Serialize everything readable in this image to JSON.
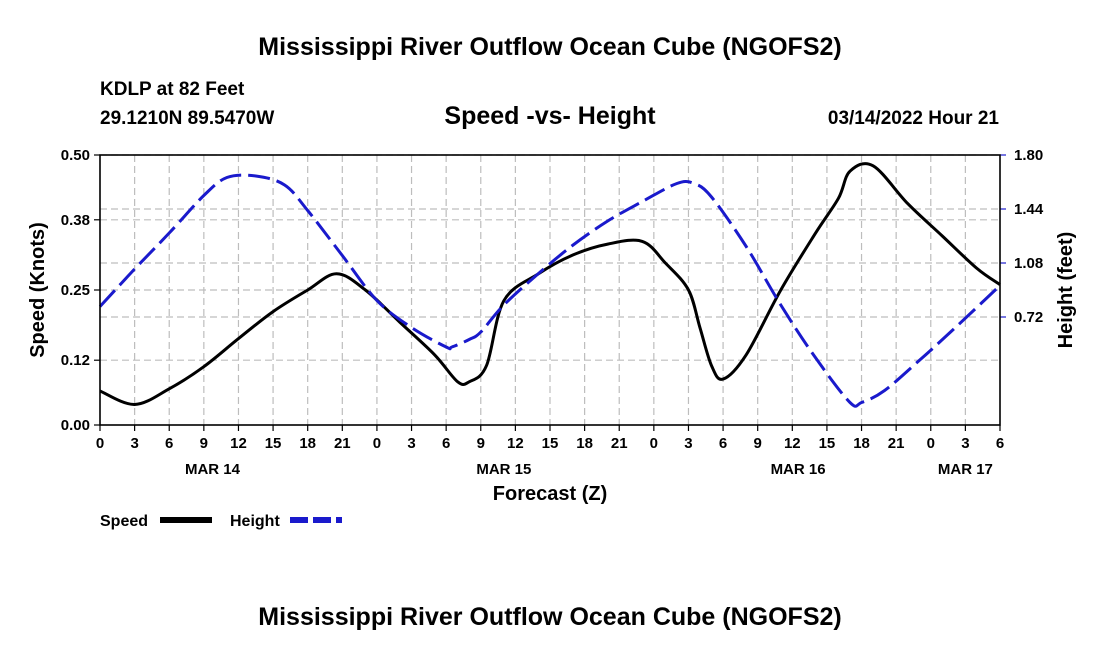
{
  "chart_data": {
    "type": "line",
    "title": "Mississippi River Outflow Ocean Cube (NGOFS2)",
    "subtitle": "Speed -vs- Height",
    "station": "KDLP at 82 Feet",
    "coordinates": "29.1210N  89.5470W",
    "timestamp": "03/14/2022 Hour 21",
    "xlabel": "Forecast (Z)",
    "ylabel_left": "Speed (Knots)",
    "ylabel_right": "Height (feet)",
    "xlim": [
      0,
      78
    ],
    "ylim_left": [
      0,
      0.5
    ],
    "ylim_right": [
      0,
      1.8
    ],
    "left_ticks": [
      "0.00",
      "0.12",
      "0.25",
      "0.38",
      "0.50"
    ],
    "right_ticks": [
      "0.72",
      "1.08",
      "1.44",
      "1.80"
    ],
    "x_tick_labels": [
      "0",
      "3",
      "6",
      "9",
      "12",
      "15",
      "18",
      "21",
      "0",
      "3",
      "6",
      "9",
      "12",
      "15",
      "18",
      "21",
      "0",
      "3",
      "6",
      "9",
      "12",
      "15",
      "18",
      "21",
      "0",
      "3",
      "6"
    ],
    "date_labels": [
      {
        "label": "MAR 14",
        "x": 9.75
      },
      {
        "label": "MAR 15",
        "x": 35
      },
      {
        "label": "MAR 16",
        "x": 60.5
      },
      {
        "label": "MAR 17",
        "x": 75
      }
    ],
    "grid": true,
    "series": [
      {
        "name": "Speed",
        "color": "#000000",
        "style": "solid",
        "axis": "left",
        "x": [
          0,
          3,
          6,
          9,
          12,
          15,
          18,
          20.5,
          23,
          26,
          29,
          31,
          32,
          33.5,
          35,
          38,
          41,
          44,
          47,
          49,
          51,
          52,
          53,
          54,
          56,
          59,
          62,
          64,
          65,
          67,
          70,
          73,
          76,
          78
        ],
        "values": [
          0.063,
          0.038,
          0.067,
          0.108,
          0.16,
          0.21,
          0.25,
          0.28,
          0.25,
          0.19,
          0.13,
          0.08,
          0.08,
          0.11,
          0.23,
          0.28,
          0.315,
          0.335,
          0.34,
          0.3,
          0.25,
          0.18,
          0.11,
          0.085,
          0.13,
          0.25,
          0.355,
          0.42,
          0.47,
          0.48,
          0.41,
          0.35,
          0.29,
          0.26
        ]
      },
      {
        "name": "Height",
        "color": "#1a1acc",
        "style": "dashed",
        "axis": "right",
        "x": [
          0,
          3,
          6,
          9,
          11,
          13.5,
          16,
          18,
          21,
          24,
          27,
          30,
          30.5,
          32,
          33,
          35,
          38,
          41,
          44,
          47,
          50,
          51.5,
          53,
          56,
          59,
          62,
          65,
          66,
          68,
          71,
          74,
          78
        ],
        "values": [
          0.79,
          1.04,
          1.28,
          1.53,
          1.65,
          1.66,
          1.6,
          1.43,
          1.13,
          0.83,
          0.65,
          0.52,
          0.52,
          0.57,
          0.62,
          0.8,
          1.01,
          1.2,
          1.36,
          1.49,
          1.61,
          1.61,
          1.52,
          1.19,
          0.8,
          0.45,
          0.15,
          0.15,
          0.23,
          0.43,
          0.64,
          0.93
        ]
      }
    ]
  }
}
